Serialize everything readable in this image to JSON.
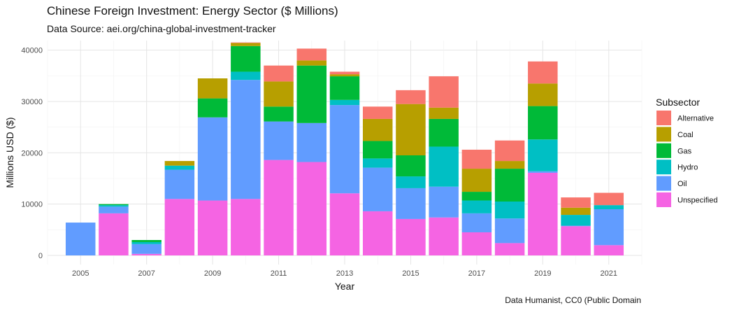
{
  "title": "Chinese Foreign Investment: Energy Sector ($ Millions)",
  "subtitle": "Data Source: aei.org/china-global-investment-tracker",
  "caption": "Data Humanist, CC0 (Public Domain",
  "colors": {
    "Alternative": "#F8766D",
    "Coal": "#B79F00",
    "Gas": "#00BA38",
    "Hydro": "#00BFC4",
    "Oil": "#619CFF",
    "Unspecified": "#F564E3"
  },
  "chart_data": {
    "type": "bar",
    "stacked": true,
    "xlabel": "Year",
    "ylabel": "Millions USD ($)",
    "ylim": [
      0,
      42000
    ],
    "xlim": [
      2004,
      2022
    ],
    "x_ticks": [
      2005,
      2007,
      2009,
      2011,
      2013,
      2015,
      2017,
      2019,
      2021
    ],
    "y_ticks": [
      0,
      10000,
      20000,
      30000,
      40000
    ],
    "y_tick_labels": [
      "0",
      "10000",
      "20000",
      "30000",
      "40000"
    ],
    "grid": true,
    "legend_title": "Subsector",
    "legend_position": "right",
    "categories": [
      2005,
      2006,
      2007,
      2008,
      2009,
      2010,
      2011,
      2012,
      2013,
      2014,
      2015,
      2016,
      2017,
      2018,
      2019,
      2020,
      2021
    ],
    "series": [
      {
        "name": "Unspecified",
        "values": [
          0,
          8200,
          300,
          11000,
          10700,
          11000,
          18600,
          18200,
          12100,
          8600,
          7100,
          7400,
          4500,
          2400,
          16100,
          5700,
          2000
        ]
      },
      {
        "name": "Oil",
        "values": [
          6400,
          1300,
          1900,
          5700,
          16200,
          23200,
          7500,
          7600,
          17200,
          8500,
          6000,
          6000,
          3700,
          4800,
          300,
          100,
          7000
        ]
      },
      {
        "name": "Hydro",
        "values": [
          0,
          300,
          400,
          800,
          0,
          1600,
          0,
          0,
          1000,
          1800,
          2300,
          7800,
          2500,
          3300,
          6200,
          2100,
          800
        ]
      },
      {
        "name": "Gas",
        "values": [
          0,
          200,
          400,
          0,
          3700,
          5000,
          2900,
          11200,
          4600,
          3400,
          4100,
          5400,
          1700,
          6400,
          6500,
          0,
          0
        ]
      },
      {
        "name": "Coal",
        "values": [
          0,
          0,
          0,
          900,
          3900,
          600,
          4900,
          1000,
          400,
          4300,
          10000,
          2200,
          4500,
          1500,
          4400,
          1400,
          0
        ]
      },
      {
        "name": "Alternative",
        "values": [
          0,
          0,
          0,
          0,
          0,
          100,
          3100,
          2300,
          500,
          2400,
          2700,
          6100,
          3700,
          4000,
          4300,
          2000,
          2400
        ]
      }
    ]
  }
}
